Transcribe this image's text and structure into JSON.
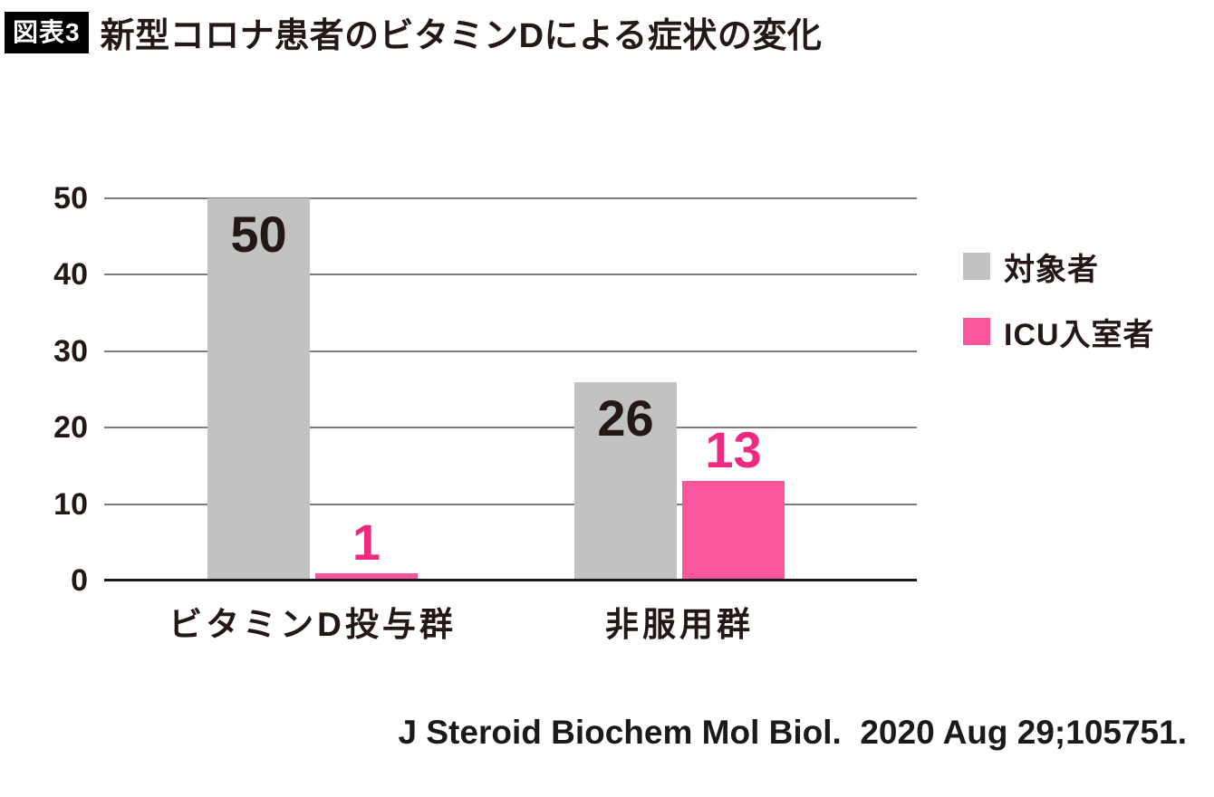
{
  "header": {
    "badge": "図表3",
    "title": "新型コロナ患者のビタミンDによる症状の変化"
  },
  "citation": "J Steroid Biochem Mol Biol.  2020 Aug 29;105751.",
  "colors": {
    "subjects_gray": "#c3c2c3",
    "icu_pink": "#f9569e",
    "icu_value_label_pink": "#ee2a80",
    "ink": "#231815",
    "gridline": "#7d7d7d",
    "axis_line": "#1a1a1a",
    "badge_bg": "#000000",
    "badge_text": "#ffffff"
  },
  "chart_data": {
    "type": "bar",
    "title": "新型コロナ患者のビタミンDによる症状の変化",
    "categories": [
      "ビタミンD投与群",
      "非服用群"
    ],
    "series": [
      {
        "name": "対象者",
        "color": "#c3c2c3",
        "values": [
          50,
          26
        ],
        "value_label_color": "#231815",
        "value_label_position": "inside-top"
      },
      {
        "name": "ICU入室者",
        "color": "#f9569e",
        "values": [
          1,
          13
        ],
        "value_label_color": "#ee2a80",
        "value_label_position": "above"
      }
    ],
    "ylim": [
      0,
      50
    ],
    "yticks": [
      0,
      10,
      20,
      30,
      40,
      50
    ],
    "grid": true,
    "legend_position": "right",
    "xlabel": "",
    "ylabel": ""
  }
}
